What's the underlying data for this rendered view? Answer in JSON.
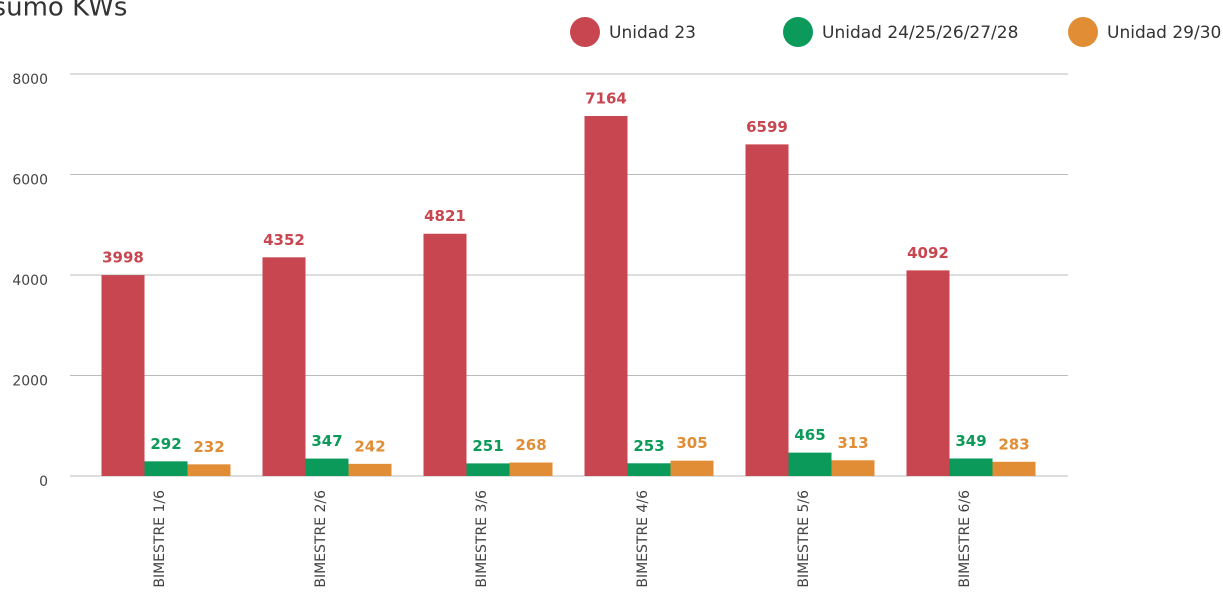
{
  "chart_data": {
    "type": "bar",
    "title": "Consumo KWs",
    "categories": [
      "BIMESTRE 1/6",
      "BIMESTRE 2/6",
      "BIMESTRE 3/6",
      "BIMESTRE 4/6",
      "BIMESTRE 5/6",
      "BIMESTRE 6/6"
    ],
    "series": [
      {
        "name": "Unidad 23",
        "color": "#c84650",
        "values": [
          3998,
          4352,
          4821,
          7164,
          6599,
          4092
        ]
      },
      {
        "name": "Unidad 24/25/26/27/28",
        "color": "#0c9a5b",
        "values": [
          292,
          347,
          251,
          253,
          465,
          349
        ]
      },
      {
        "name": "Unidad 29/30",
        "color": "#e08d36",
        "values": [
          232,
          242,
          268,
          305,
          313,
          283
        ]
      }
    ],
    "ylim": [
      0,
      8000
    ],
    "yticks": [
      0,
      2000,
      4000,
      6000,
      8000
    ],
    "grid": true,
    "legend": "top-right"
  }
}
